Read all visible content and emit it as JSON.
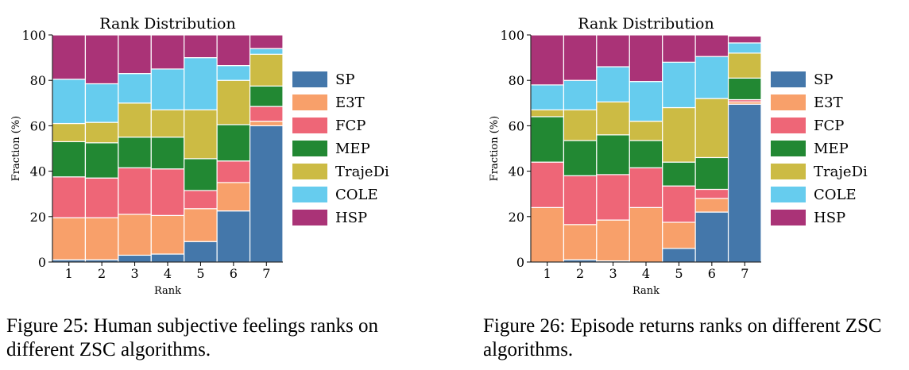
{
  "figures": [
    {
      "caption": "Figure 25: Human subjective feelings ranks on different ZSC algorithms.",
      "chart_data": {
        "type": "bar",
        "stacked": true,
        "title": "Rank Distribution",
        "xlabel": "Rank",
        "ylabel": "Fraction (%)",
        "ylim": [
          0,
          100
        ],
        "yticks": [
          0,
          20,
          40,
          60,
          80,
          100
        ],
        "categories": [
          "1",
          "2",
          "3",
          "4",
          "5",
          "6",
          "7"
        ],
        "legend_position": "right",
        "series": [
          {
            "name": "SP",
            "color": "#4477AA",
            "values": [
              1,
              1,
              3,
              3.5,
              9,
              22.5,
              60
            ]
          },
          {
            "name": "E3T",
            "color": "#F8A06A",
            "values": [
              18.5,
              18.5,
              18,
              17,
              14.5,
              12.5,
              2
            ]
          },
          {
            "name": "FCP",
            "color": "#EE6677",
            "values": [
              18,
              17.5,
              20.5,
              20.5,
              8,
              9.5,
              6.5
            ]
          },
          {
            "name": "MEP",
            "color": "#228833",
            "values": [
              15.5,
              15.5,
              13.5,
              14,
              14,
              16,
              9
            ]
          },
          {
            "name": "TrajeDi",
            "color": "#CCBB44",
            "values": [
              8,
              9,
              15,
              12,
              21.5,
              19.5,
              14
            ]
          },
          {
            "name": "COLE",
            "color": "#66CCEE",
            "values": [
              19.5,
              17,
              13,
              18,
              23,
              6.5,
              2.5
            ]
          },
          {
            "name": "HSP",
            "color": "#AA3377",
            "values": [
              19.5,
              21.5,
              17,
              15,
              10,
              13.5,
              6
            ]
          }
        ]
      }
    },
    {
      "caption": "Figure 26: Episode returns ranks on different ZSC algorithms.",
      "chart_data": {
        "type": "bar",
        "stacked": true,
        "title": "Rank Distribution",
        "xlabel": "Rank",
        "ylabel": "Fraction (%)",
        "ylim": [
          0,
          100
        ],
        "yticks": [
          0,
          20,
          40,
          60,
          80,
          100
        ],
        "categories": [
          "1",
          "2",
          "3",
          "4",
          "5",
          "6",
          "7"
        ],
        "legend_position": "right",
        "series": [
          {
            "name": "SP",
            "color": "#4477AA",
            "values": [
              0,
              1,
              0.5,
              0,
              6,
              22,
              69.5
            ]
          },
          {
            "name": "E3T",
            "color": "#F8A06A",
            "values": [
              24,
              15.5,
              18,
              24,
              11.5,
              6,
              1
            ]
          },
          {
            "name": "FCP",
            "color": "#EE6677",
            "values": [
              20,
              21.5,
              20,
              17.5,
              16,
              4,
              1
            ]
          },
          {
            "name": "MEP",
            "color": "#228833",
            "values": [
              20,
              15.5,
              17.5,
              12,
              10.5,
              14,
              9.5
            ]
          },
          {
            "name": "TrajeDi",
            "color": "#CCBB44",
            "values": [
              3,
              13.5,
              14.5,
              8.5,
              24,
              26,
              11
            ]
          },
          {
            "name": "COLE",
            "color": "#66CCEE",
            "values": [
              11,
              13,
              15.5,
              17.5,
              20,
              18.5,
              4.5
            ]
          },
          {
            "name": "HSP",
            "color": "#AA3377",
            "values": [
              22,
              20,
              14,
              20.5,
              12,
              9.5,
              3
            ]
          }
        ]
      }
    }
  ]
}
